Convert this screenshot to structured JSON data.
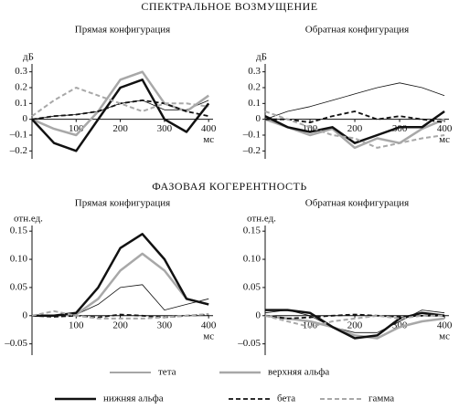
{
  "headings": [
    "СПЕКТРАЛЬНОЕ ВОЗМУЩЕНИЕ",
    "ФАЗОВАЯ КОГЕРЕНТНОСТЬ"
  ],
  "chart_data": [
    {
      "type": "line",
      "title": "Прямая конфигурация",
      "ylabel": "дБ",
      "xlabel": "мс",
      "x": [
        0,
        50,
        100,
        150,
        200,
        250,
        300,
        350,
        400
      ],
      "xlim": [
        0,
        410
      ],
      "xticks": [
        100,
        200,
        300,
        400
      ],
      "ylim": [
        -0.25,
        0.35
      ],
      "yticks": [
        {
          "value": -0.2,
          "label": "–0.2"
        },
        {
          "value": -0.1,
          "label": "–0.1"
        },
        0,
        0.1,
        0.2,
        0.3
      ],
      "series": [
        {
          "name": "тета",
          "color": "#111111",
          "line_width": 0.8,
          "dashed": false,
          "values": [
            0,
            0.02,
            0.03,
            0.05,
            0.1,
            0.12,
            0.06,
            0.06,
            0.12
          ]
        },
        {
          "name": "верхняя альфа",
          "color": "#a8a8a8",
          "line_width": 2.5,
          "dashed": false,
          "values": [
            0,
            -0.06,
            -0.1,
            0.05,
            0.25,
            0.3,
            0.1,
            0.05,
            0.15
          ]
        },
        {
          "name": "нижняя альфа",
          "color": "#111111",
          "line_width": 2.5,
          "dashed": false,
          "values": [
            0,
            -0.15,
            -0.2,
            0,
            0.2,
            0.25,
            0,
            -0.08,
            0.1
          ]
        },
        {
          "name": "бета",
          "color": "#111111",
          "line_width": 1.8,
          "dashed": true,
          "values": [
            0,
            0.02,
            0.03,
            0.05,
            0.1,
            0.12,
            0.1,
            0.05,
            0.02
          ]
        },
        {
          "name": "гамма",
          "color": "#a8a8a8",
          "line_width": 2,
          "dashed": true,
          "values": [
            0.02,
            0.12,
            0.2,
            0.15,
            0.1,
            0.05,
            0.1,
            0.1,
            0.08
          ]
        }
      ]
    },
    {
      "type": "line",
      "title": "Обратная конфигурация",
      "ylabel": "дБ",
      "xlabel": "мс",
      "x": [
        0,
        50,
        100,
        150,
        200,
        250,
        300,
        350,
        400
      ],
      "xlim": [
        0,
        410
      ],
      "xticks": [
        100,
        200,
        300,
        400
      ],
      "ylim": [
        -0.25,
        0.35
      ],
      "yticks": [
        {
          "value": -0.2,
          "label": "–0.2"
        },
        {
          "value": -0.1,
          "label": "–0.1"
        },
        0,
        0.1,
        0.2,
        0.3
      ],
      "series": [
        {
          "name": "тета",
          "color": "#111111",
          "line_width": 0.8,
          "dashed": false,
          "values": [
            0,
            0.05,
            0.08,
            0.12,
            0.16,
            0.2,
            0.23,
            0.2,
            0.15
          ]
        },
        {
          "name": "верхняя альфа",
          "color": "#a8a8a8",
          "line_width": 2.5,
          "dashed": false,
          "values": [
            0,
            -0.05,
            -0.1,
            -0.06,
            -0.18,
            -0.12,
            -0.15,
            -0.06,
            0
          ]
        },
        {
          "name": "нижняя альфа",
          "color": "#111111",
          "line_width": 2.5,
          "dashed": false,
          "values": [
            0.02,
            -0.05,
            -0.08,
            -0.05,
            -0.15,
            -0.1,
            -0.05,
            -0.05,
            0.05
          ]
        },
        {
          "name": "бета",
          "color": "#111111",
          "line_width": 1.8,
          "dashed": true,
          "values": [
            0,
            0,
            -0.02,
            0.02,
            0.05,
            0,
            0.02,
            0,
            -0.02
          ]
        },
        {
          "name": "гамма",
          "color": "#a8a8a8",
          "line_width": 2,
          "dashed": true,
          "values": [
            0.05,
            0,
            -0.05,
            -0.1,
            -0.12,
            -0.18,
            -0.15,
            -0.12,
            -0.1
          ]
        }
      ]
    },
    {
      "type": "line",
      "title": "Прямая конфигурация",
      "ylabel": "отн.ед.",
      "xlabel": "мс",
      "x": [
        0,
        50,
        100,
        150,
        200,
        250,
        300,
        350,
        400
      ],
      "xlim": [
        0,
        410
      ],
      "xticks": [
        100,
        200,
        300,
        400
      ],
      "ylim": [
        -0.07,
        0.16
      ],
      "yticks": [
        {
          "value": -0.05,
          "label": "–0.05"
        },
        0,
        0.05,
        {
          "value": 0.1,
          "label": "0.10"
        },
        0.15
      ],
      "series": [
        {
          "name": "тета",
          "color": "#111111",
          "line_width": 0.8,
          "dashed": false,
          "values": [
            0,
            0,
            0.002,
            0.02,
            0.05,
            0.055,
            0.01,
            0.02,
            0.03
          ]
        },
        {
          "name": "верхняя альфа",
          "color": "#a8a8a8",
          "line_width": 2.5,
          "dashed": false,
          "values": [
            0,
            0,
            0.002,
            0.03,
            0.08,
            0.11,
            0.08,
            0.03,
            0.02
          ]
        },
        {
          "name": "нижняя альфа",
          "color": "#111111",
          "line_width": 2.5,
          "dashed": false,
          "values": [
            0,
            0,
            0.005,
            0.05,
            0.12,
            0.145,
            0.1,
            0.03,
            0.02
          ]
        },
        {
          "name": "бета",
          "color": "#111111",
          "line_width": 1.8,
          "dashed": true,
          "values": [
            0,
            -0.002,
            0,
            -0.003,
            0.002,
            0,
            -0.003,
            0,
            0.002
          ]
        },
        {
          "name": "гамма",
          "color": "#a8a8a8",
          "line_width": 2,
          "dashed": true,
          "values": [
            0,
            0.008,
            0,
            -0.005,
            -0.005,
            -0.005,
            -0.003,
            0,
            0.003
          ]
        }
      ]
    },
    {
      "type": "line",
      "title": "Обратная конфигурация",
      "ylabel": "отн.ед.",
      "xlabel": "мс",
      "x": [
        0,
        50,
        100,
        150,
        200,
        250,
        300,
        350,
        400
      ],
      "xlim": [
        0,
        410
      ],
      "xticks": [
        100,
        200,
        300,
        400
      ],
      "ylim": [
        -0.07,
        0.16
      ],
      "yticks": [
        {
          "value": -0.05,
          "label": "–0.05"
        },
        0,
        0.05,
        {
          "value": 0.1,
          "label": "0.10"
        },
        0.15
      ],
      "series": [
        {
          "name": "тета",
          "color": "#111111",
          "line_width": 0.8,
          "dashed": false,
          "values": [
            0.005,
            0.01,
            0,
            -0.02,
            -0.03,
            -0.03,
            -0.01,
            0.01,
            0.005
          ]
        },
        {
          "name": "верхняя альфа",
          "color": "#a8a8a8",
          "line_width": 2.5,
          "dashed": false,
          "values": [
            0,
            -0.005,
            -0.01,
            -0.02,
            -0.035,
            -0.04,
            -0.02,
            -0.01,
            -0.005
          ]
        },
        {
          "name": "нижняя альфа",
          "color": "#111111",
          "line_width": 2.5,
          "dashed": false,
          "values": [
            0.01,
            0.01,
            0.005,
            -0.02,
            -0.04,
            -0.035,
            -0.005,
            0.005,
            0
          ]
        },
        {
          "name": "бета",
          "color": "#111111",
          "line_width": 1.8,
          "dashed": true,
          "values": [
            0,
            -0.005,
            -0.003,
            0,
            0.002,
            0,
            -0.002,
            0,
            0
          ]
        },
        {
          "name": "гамма",
          "color": "#a8a8a8",
          "line_width": 2,
          "dashed": true,
          "values": [
            0,
            -0.01,
            -0.02,
            -0.01,
            -0.005,
            0,
            -0.005,
            0,
            0
          ]
        }
      ]
    }
  ]
}
